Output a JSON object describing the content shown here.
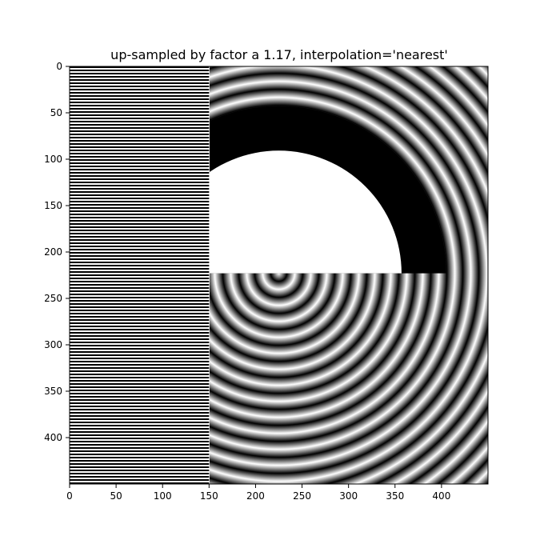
{
  "chart_data": {
    "type": "heatmap",
    "title": "up-sampled by factor a 1.17, interpolation='nearest'",
    "xlabel": "",
    "ylabel": "",
    "xlim": [
      0,
      450
    ],
    "ylim": [
      450,
      0
    ],
    "y_inverted": true,
    "xticks": [
      0,
      50,
      100,
      150,
      200,
      250,
      300,
      350,
      400
    ],
    "yticks": [
      0,
      50,
      100,
      150,
      200,
      250,
      300,
      350,
      400
    ],
    "colormap": "gray",
    "grid": false,
    "interpolation": "nearest",
    "upsample_factor": 1.17,
    "image_regions": {
      "left_stripes": {
        "x": [
          0,
          150
        ],
        "y": [
          0,
          450
        ],
        "pattern": "horizontal stripes"
      },
      "upper_right": {
        "x": [
          150,
          450
        ],
        "y": [
          0,
          223
        ],
        "pattern": "concentric rings with black half-annulus and white half-disk"
      },
      "lower_right": {
        "x": [
          150,
          450
        ],
        "y": [
          223,
          450
        ],
        "pattern": "concentric rings centered near x=225, y=223"
      }
    },
    "ring_center": [
      225,
      223
    ],
    "white_disk_radius": 132,
    "black_annulus_outer_radius": 180
  }
}
